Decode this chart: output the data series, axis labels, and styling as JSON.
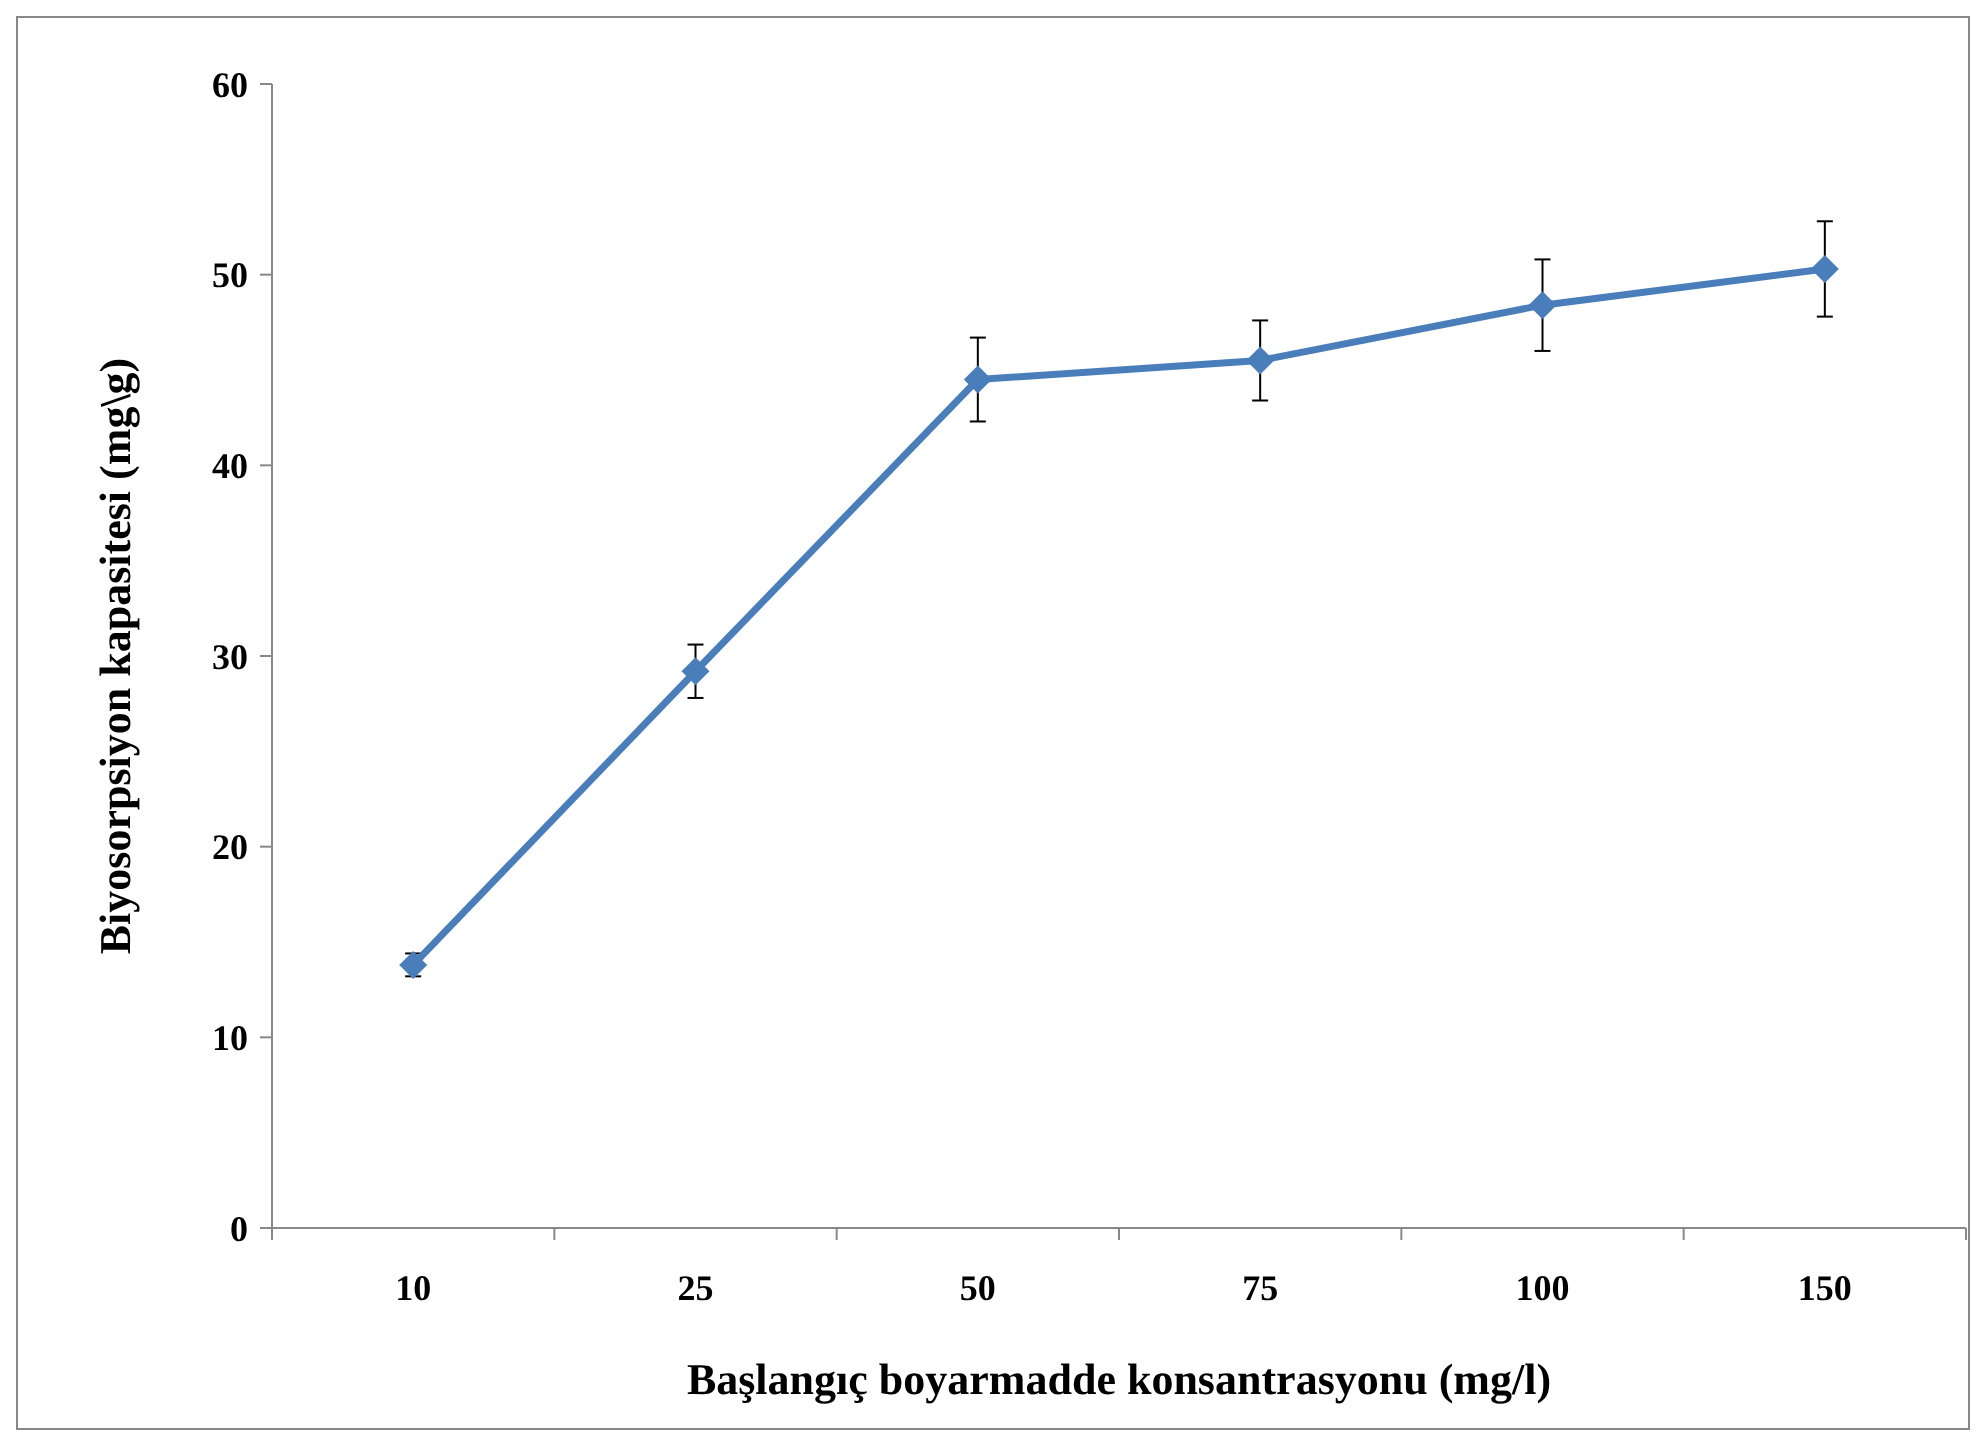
{
  "chart_data": {
    "type": "line",
    "xlabel": "Başlangıç boyarmadde konsantrasyonu (mg/l)",
    "ylabel": "Biyosorpsiyon kapasitesi (mg\\g)",
    "categories": [
      "10",
      "25",
      "50",
      "75",
      "100",
      "150"
    ],
    "series": [
      {
        "color": "#4a7ebb",
        "values": [
          13.8,
          29.2,
          44.5,
          45.5,
          48.4,
          50.3
        ],
        "errors": [
          0.6,
          1.4,
          2.2,
          2.1,
          2.4,
          2.5
        ]
      }
    ],
    "ylim": [
      0,
      60
    ],
    "yticks": [
      0,
      10,
      20,
      30,
      40,
      50,
      60
    ],
    "grid": false,
    "marker": "diamond",
    "line_style": "solid"
  }
}
